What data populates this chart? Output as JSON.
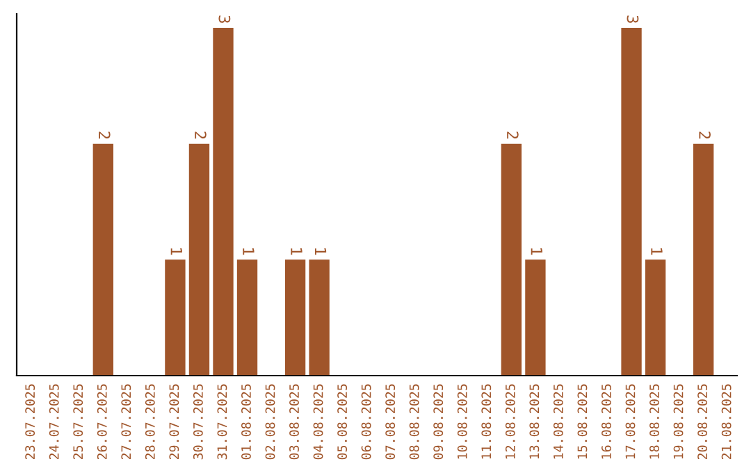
{
  "chart_data": {
    "type": "bar",
    "categories": [
      "23.07.2025",
      "24.07.2025",
      "25.07.2025",
      "26.07.2025",
      "27.07.2025",
      "28.07.2025",
      "29.07.2025",
      "30.07.2025",
      "31.07.2025",
      "01.08.2025",
      "02.08.2025",
      "03.08.2025",
      "04.08.2025",
      "05.08.2025",
      "06.08.2025",
      "07.08.2025",
      "08.08.2025",
      "09.08.2025",
      "10.08.2025",
      "11.08.2025",
      "12.08.2025",
      "13.08.2025",
      "14.08.2025",
      "15.08.2025",
      "16.08.2025",
      "17.08.2025",
      "18.08.2025",
      "19.08.2025",
      "20.08.2025",
      "21.08.2025"
    ],
    "series": [
      {
        "color": "#a0552a",
        "values": [
          0,
          0,
          0,
          2,
          0,
          0,
          1,
          2,
          3,
          1,
          0,
          1,
          1,
          0,
          0,
          0,
          0,
          0,
          0,
          0,
          2,
          1,
          0,
          0,
          0,
          3,
          1,
          0,
          2,
          0
        ],
        "value_labels": [
          null,
          null,
          null,
          "2",
          null,
          null,
          "1",
          "2",
          "3",
          "1",
          null,
          "1",
          "1",
          null,
          null,
          null,
          null,
          null,
          null,
          null,
          "2",
          "1",
          null,
          null,
          null,
          "3",
          "1",
          null,
          "2",
          null
        ]
      }
    ],
    "grid": false,
    "legend": false,
    "tick_labels": "x"
  }
}
